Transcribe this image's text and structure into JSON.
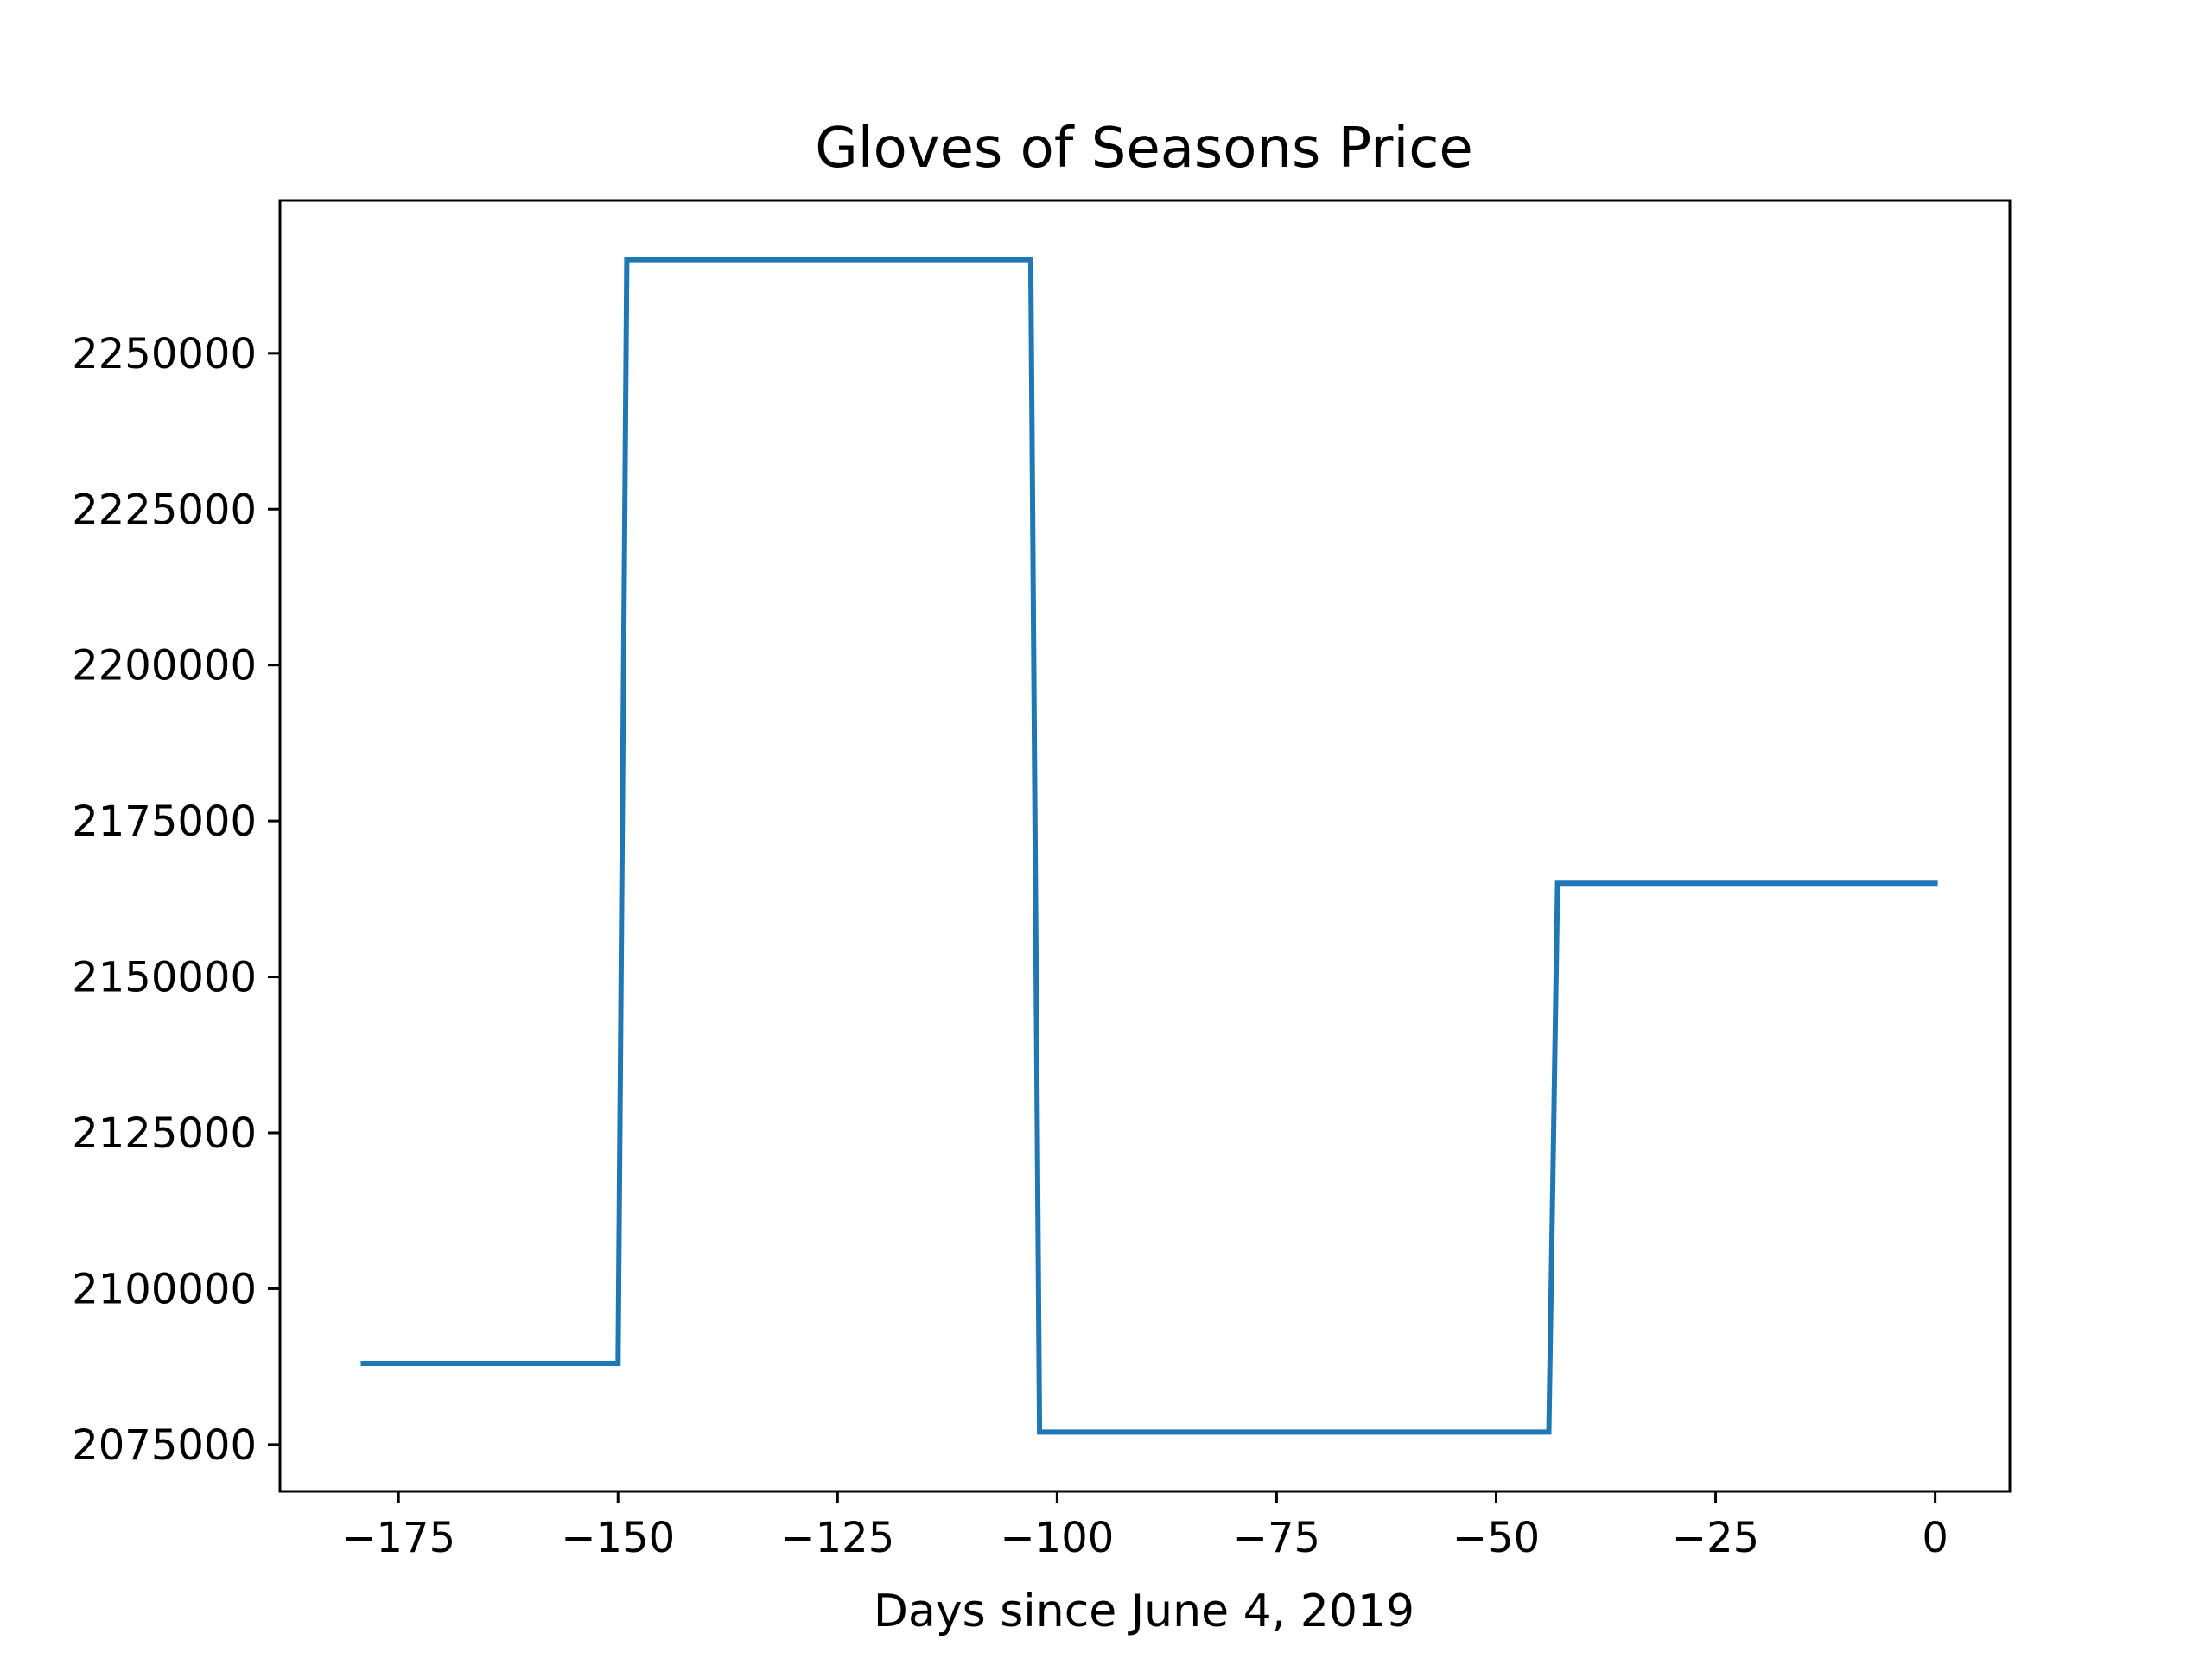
{
  "chart_data": {
    "type": "line",
    "drawstyle": "steps-post",
    "title": "Gloves of Seasons Price",
    "xlabel": "Days since June 4, 2019",
    "ylabel": "",
    "x_unit": "days since June 4, 2019",
    "xlim": [
      -188.5,
      8.5
    ],
    "ylim": [
      2067500,
      2274500
    ],
    "xticks": [
      -175,
      -150,
      -125,
      -100,
      -75,
      -50,
      -25,
      0
    ],
    "xtick_labels": [
      "−175",
      "−150",
      "−125",
      "−100",
      "−75",
      "−50",
      "−25",
      "0"
    ],
    "yticks": [
      2075000,
      2100000,
      2125000,
      2150000,
      2175000,
      2200000,
      2225000,
      2250000
    ],
    "ytick_labels": [
      "2075000",
      "2100000",
      "2125000",
      "2150000",
      "2175000",
      "2200000",
      "2225000",
      "2250000"
    ],
    "grid": false,
    "series": [
      {
        "color": "#1f77b4",
        "x": [
          -179,
          -150,
          -149,
          -103,
          -102,
          -44,
          -43,
          0
        ],
        "y": [
          2088000,
          2088000,
          2265000,
          2265000,
          2077000,
          2077000,
          2165000,
          2165000
        ]
      }
    ]
  }
}
